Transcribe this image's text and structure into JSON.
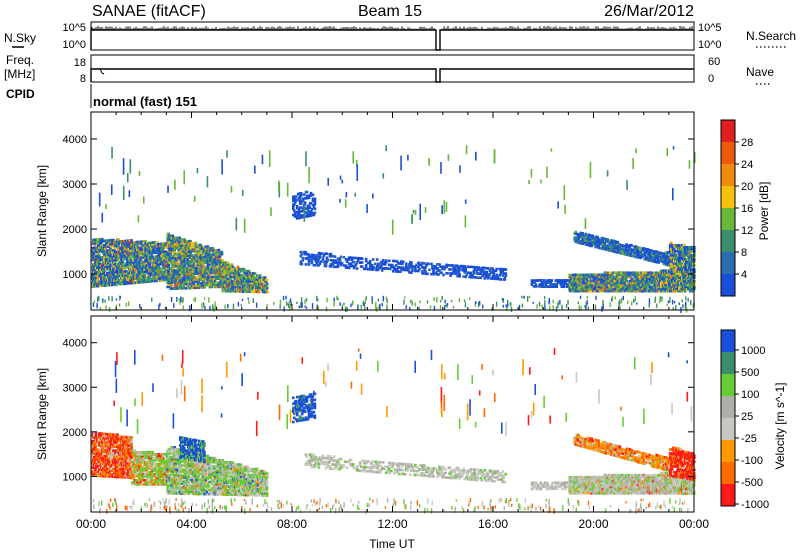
{
  "header": {
    "station": "SANAE (fitACF)",
    "beam": "Beam 15",
    "date": "26/Mar/2012"
  },
  "panels": {
    "nsky": {
      "left_label": "N.Sky",
      "right_label": "N.Search",
      "y_labels": [
        "10^5",
        "10^0"
      ]
    },
    "freq": {
      "left_labels": [
        "Freq.",
        "[MHz]"
      ],
      "right_label": "Nave",
      "left_ticks": [
        "18",
        "8"
      ],
      "right_ticks": [
        "60",
        "0"
      ]
    },
    "cpid": {
      "label": "CPID",
      "program": "normal (fast) 151"
    }
  },
  "colors": {
    "power": [
      "#1b4fd9",
      "#2b6cb0",
      "#3a8f6a",
      "#67b83a",
      "#f4c20d",
      "#f08a11",
      "#ec5a0d",
      "#e02020"
    ],
    "velocity": [
      "#ff1a1a",
      "#ff6a00",
      "#ff9900",
      "#c8c8c0",
      "#b0b0a8",
      "#66cc33",
      "#3a8f6a",
      "#1b4fd9"
    ]
  },
  "chart_data": [
    {
      "type": "heatmap",
      "name": "power",
      "xlabel": "",
      "ylabel": "Slant Range [km]",
      "x_ticks": [
        "00:00",
        "04:00",
        "08:00",
        "12:00",
        "16:00",
        "20:00",
        "00:00"
      ],
      "y_ticks": [
        "1000",
        "2000",
        "3000",
        "4000"
      ],
      "ylim": [
        200,
        4600
      ],
      "colorbar": {
        "label": "Power [dB]",
        "ticks": [
          "4",
          "8",
          "12",
          "16",
          "20",
          "24",
          "28"
        ],
        "range": [
          0,
          32
        ]
      }
    },
    {
      "type": "heatmap",
      "name": "velocity",
      "xlabel": "Time UT",
      "ylabel": "Slant Range [km]",
      "x_ticks": [
        "00:00",
        "04:00",
        "08:00",
        "12:00",
        "16:00",
        "20:00",
        "00:00"
      ],
      "y_ticks": [
        "1000",
        "2000",
        "3000",
        "4000"
      ],
      "ylim": [
        200,
        4600
      ],
      "colorbar": {
        "label": "Velocity [m s^-1]",
        "ticks": [
          "1000",
          "500",
          "100",
          "25",
          "-25",
          "-100",
          "-500",
          "-1000"
        ]
      }
    }
  ]
}
